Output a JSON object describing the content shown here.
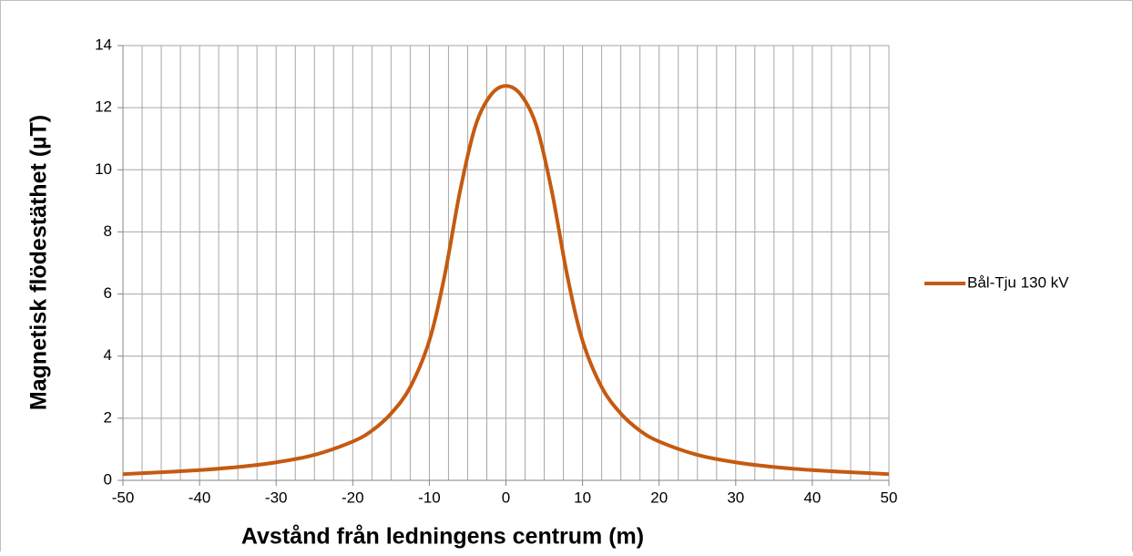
{
  "chart_data": {
    "type": "line",
    "xlabel": "Avstånd från ledningens centrum (m)",
    "ylabel": "Magnetisk flödestäthet (µT)",
    "x": [
      -50,
      -45,
      -40,
      -35,
      -30,
      -25,
      -20,
      -17.5,
      -15,
      -12.5,
      -10,
      -8,
      -6,
      -4,
      -2,
      0,
      2,
      4,
      6,
      8,
      10,
      12.5,
      15,
      17.5,
      20,
      25,
      30,
      35,
      40,
      45,
      50
    ],
    "series": [
      {
        "name": "Bål-Tju 130 kV",
        "color": "#c55a11",
        "values": [
          0.2,
          0.26,
          0.33,
          0.43,
          0.58,
          0.82,
          1.25,
          1.6,
          2.15,
          3.0,
          4.5,
          6.6,
          9.3,
          11.4,
          12.4,
          12.7,
          12.4,
          11.4,
          9.3,
          6.6,
          4.5,
          3.0,
          2.15,
          1.6,
          1.25,
          0.82,
          0.58,
          0.43,
          0.33,
          0.26,
          0.2
        ]
      }
    ],
    "xlim": [
      -50,
      50
    ],
    "xticks": [
      -50,
      -40,
      -30,
      -20,
      -10,
      0,
      10,
      20,
      30,
      40,
      50
    ],
    "xminorticks": [
      -47.5,
      -45,
      -42.5,
      -37.5,
      -35,
      -32.5,
      -27.5,
      -25,
      -22.5,
      -17.5,
      -15,
      -12.5,
      -7.5,
      -5,
      -2.5,
      2.5,
      5,
      7.5,
      12.5,
      15,
      17.5,
      22.5,
      25,
      27.5,
      32.5,
      35,
      37.5,
      42.5,
      45,
      47.5
    ],
    "ylim": [
      0,
      14
    ],
    "yticks": [
      0,
      2,
      4,
      6,
      8,
      10,
      12,
      14
    ],
    "grid": true,
    "legend": "right"
  }
}
